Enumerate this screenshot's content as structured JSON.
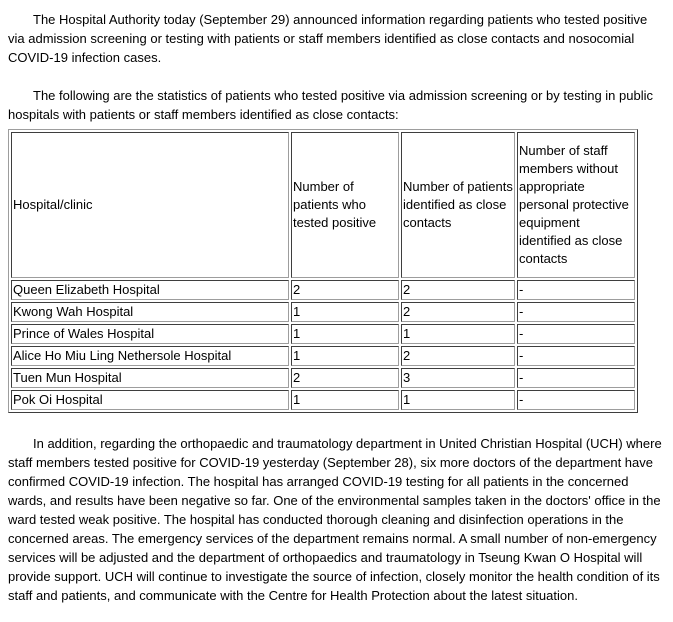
{
  "colors": {
    "text": "#000000",
    "background": "#ffffff",
    "table_border_light": "#9d9d9d",
    "table_border_dark": "#3e3e3e"
  },
  "document": {
    "paragraphs": [
      "The Hospital Authority today (September 29) announced information regarding patients who tested positive via admission screening or testing with patients or staff members identified as close contacts and nosocomial COVID-19 infection cases.",
      "The following are the statistics of patients who tested positive via admission screening or by testing in public hospitals with patients or staff members identified as close contacts:",
      "In addition, regarding the orthopaedic and traumatology department in United Christian Hospital (UCH) where staff members tested positive for COVID-19 yesterday (September 28), six more doctors of the department have confirmed COVID-19 infection. The hospital has arranged COVID-19 testing for all patients in the concerned wards, and results have been negative so far. One of the environmental samples taken in the doctors' office in the ward tested weak positive. The hospital has conducted thorough cleaning and disinfection operations in the concerned areas. The emergency services of the department remains normal. A small number of non-emergency services will be adjusted and the department of orthopaedics and traumatology in Tseung Kwan O Hospital will provide support. UCH will continue to investigate the source of infection, closely monitor the health condition of its staff and patients, and communicate with the Centre for Health Protection about the latest situation."
    ],
    "table": {
      "headers": [
        "Hospital/clinic",
        "Number of patients who tested positive",
        "Number of patients identified as close contacts",
        "Number of staff members without appropriate personal protective equipment identified as close contacts"
      ],
      "rows": [
        [
          "Queen Elizabeth Hospital",
          "2",
          "2",
          "-"
        ],
        [
          "Kwong Wah Hospital",
          "1",
          "2",
          "-"
        ],
        [
          "Prince of Wales Hospital",
          "1",
          "1",
          "-"
        ],
        [
          "Alice Ho Miu Ling Nethersole Hospital",
          "1",
          "2",
          "-"
        ],
        [
          "Tuen Mun Hospital",
          "2",
          "3",
          "-"
        ],
        [
          "Pok Oi Hospital",
          "1",
          "1",
          "-"
        ]
      ]
    }
  }
}
